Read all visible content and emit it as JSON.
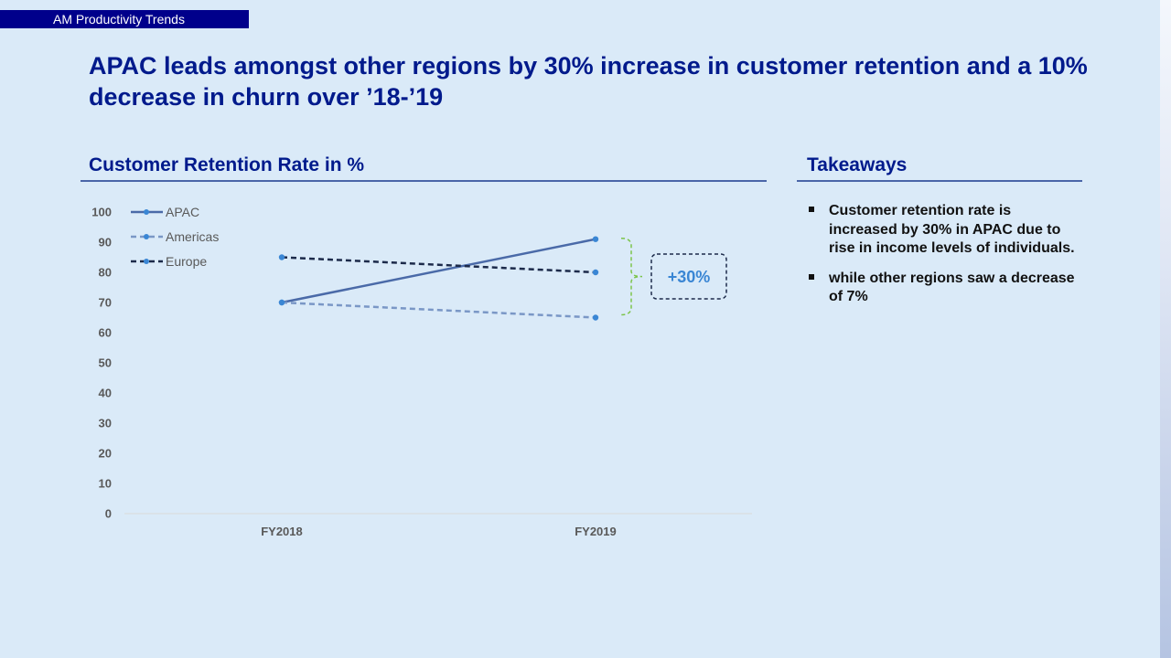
{
  "header": {
    "tag": "AM Productivity Trends"
  },
  "headline": "APAC leads amongst other regions by 30% increase in customer retention and a 10% decrease in churn over ’18-’19",
  "chart_section": {
    "title": "Customer Retention Rate in %"
  },
  "takeaways": {
    "title": "Takeaways",
    "items": [
      "Customer retention rate is increased by 30% in APAC due to rise in income levels of individuals.",
      "while other regions saw a decrease of 7%"
    ]
  },
  "colors": {
    "title_blue": "#001a8c",
    "tag_navy": "#00008b",
    "apac": "#4a6aa8",
    "americas": "#7a97c6",
    "europe": "#1c2a4a",
    "marker": "#3a86d4",
    "bracket": "#7cc44a"
  },
  "chart_data": {
    "type": "line",
    "title": "Customer Retention Rate in %",
    "categories": [
      "FY2018",
      "FY2019"
    ],
    "series": [
      {
        "name": "APAC",
        "values": [
          70,
          91
        ],
        "style": "solid"
      },
      {
        "name": "Americas",
        "values": [
          70,
          65
        ],
        "style": "dashed"
      },
      {
        "name": "Europe",
        "values": [
          85,
          80
        ],
        "style": "dashed"
      }
    ],
    "yticks": [
      0,
      10,
      20,
      30,
      40,
      50,
      60,
      70,
      80,
      90,
      100
    ],
    "ylim": [
      0,
      100
    ],
    "grid": false,
    "legend": "top-left",
    "annotation": {
      "text": "+30%",
      "bracket_from": 91,
      "bracket_to": 65
    }
  }
}
